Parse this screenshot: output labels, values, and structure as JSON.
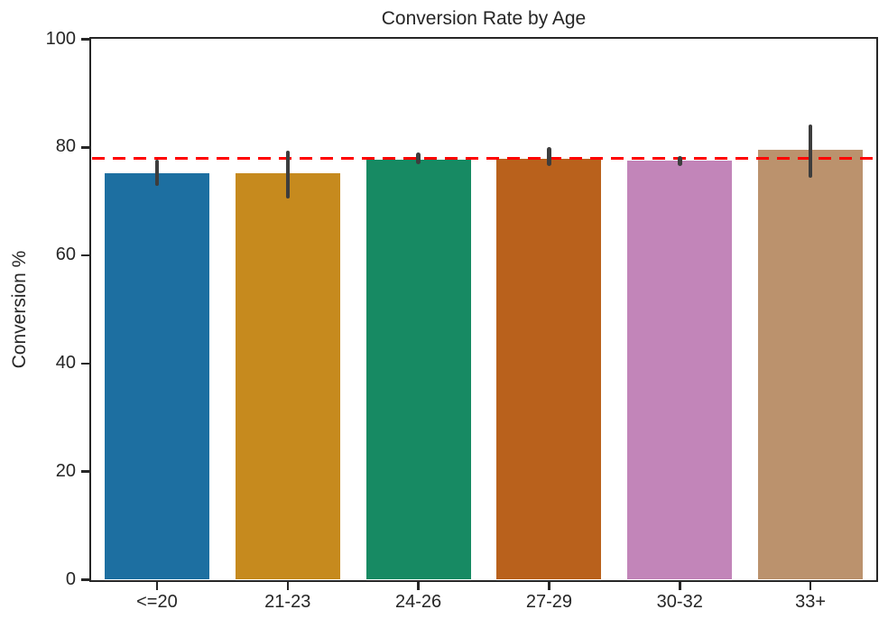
{
  "chart_data": {
    "type": "bar",
    "title": "Conversion Rate by Age",
    "xlabel": "",
    "ylabel": "Conversion %",
    "categories": [
      "<=20",
      "21-23",
      "24-26",
      "27-29",
      "30-32",
      "33+"
    ],
    "values": [
      75.2,
      75.2,
      77.7,
      77.9,
      77.6,
      79.6
    ],
    "error_low": [
      72.9,
      70.5,
      76.9,
      76.6,
      76.6,
      74.4
    ],
    "error_high": [
      77.7,
      79.4,
      79.1,
      80.0,
      78.3,
      84.2
    ],
    "bar_colors": [
      "#1D6FA1",
      "#C68A1E",
      "#178A63",
      "#B9611C",
      "#C285B9",
      "#BB926D"
    ],
    "error_bar_color": "#3D3D3D",
    "reference_line": {
      "y": 78,
      "color": "#FF0000",
      "style": "dashed"
    },
    "ylim": [
      0,
      100
    ],
    "yticks": [
      0,
      20,
      40,
      60,
      80,
      100
    ],
    "bar_width_fraction": 0.8,
    "grid": false,
    "legend": "none",
    "spine_color": "#262626"
  }
}
